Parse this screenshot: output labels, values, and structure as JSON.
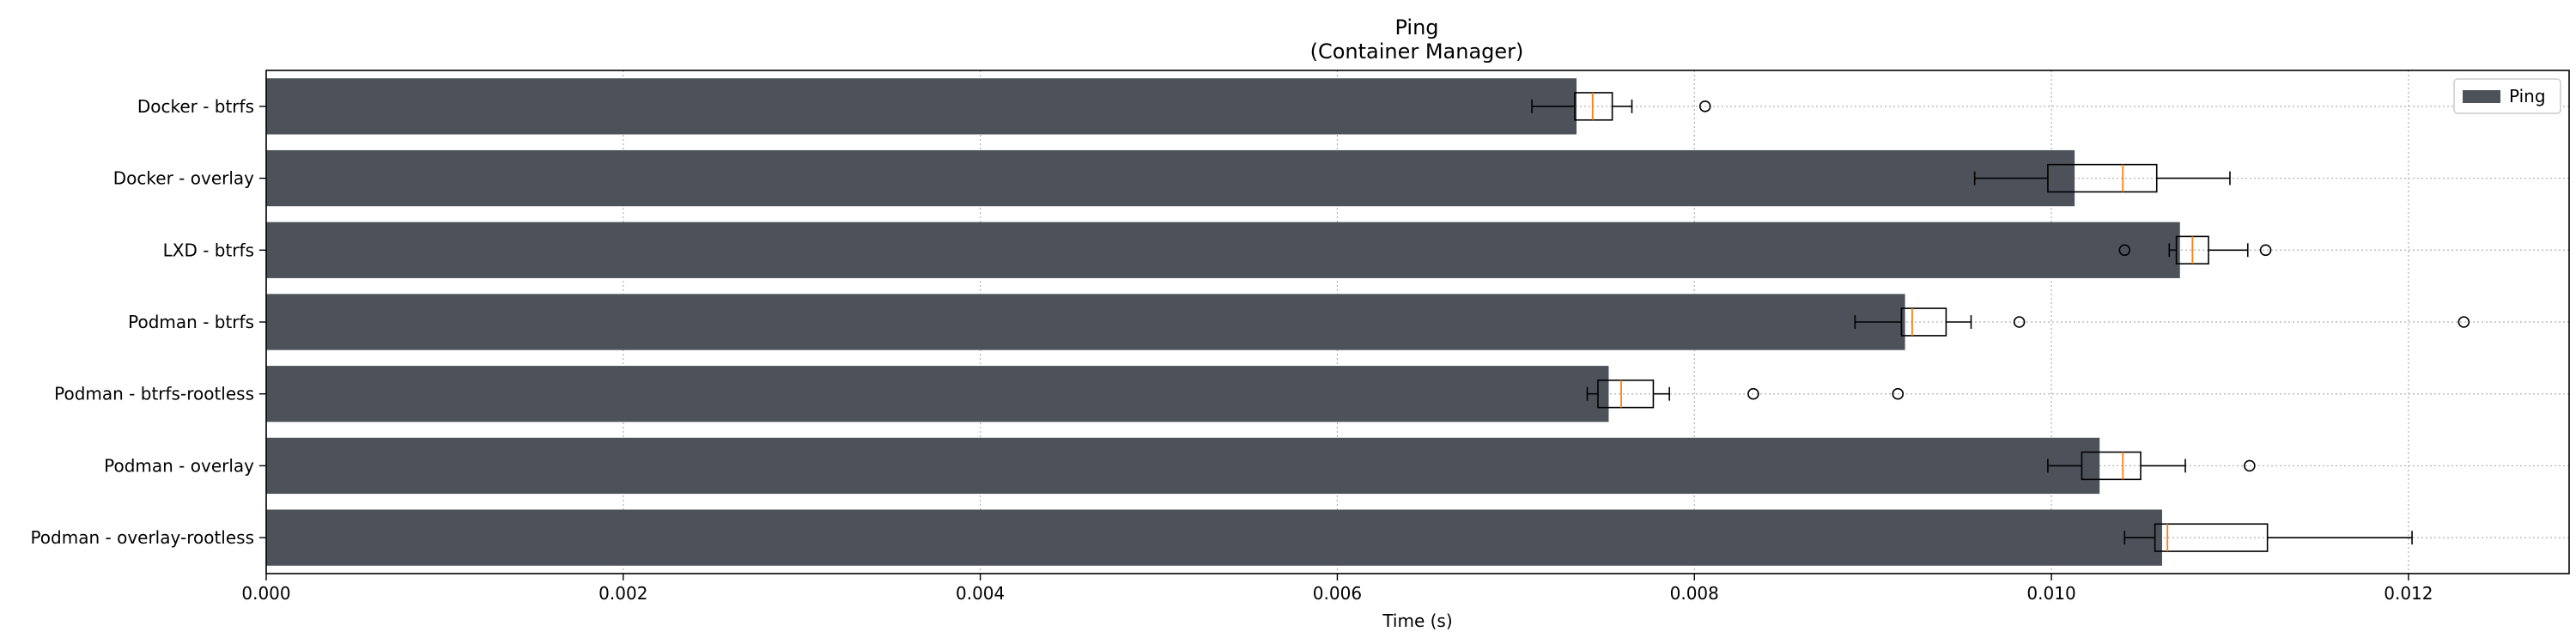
{
  "chart_data": {
    "type": "bar",
    "orientation": "horizontal",
    "title": [
      "Ping",
      "(Container Manager)"
    ],
    "xlabel": "Time (s)",
    "ylabel": "",
    "xlim": [
      0,
      0.0129
    ],
    "xticks": [
      0.0,
      0.002,
      0.004,
      0.006,
      0.008,
      0.01,
      0.012
    ],
    "xtick_labels": [
      "0.000",
      "0.002",
      "0.004",
      "0.006",
      "0.008",
      "0.010",
      "0.012"
    ],
    "grid": true,
    "legend": {
      "placement": "top-right",
      "entries": [
        {
          "name": "Ping",
          "color": "#4d525a"
        }
      ]
    },
    "categories": [
      "Docker - btrfs",
      "Docker - overlay",
      "LXD - btrfs",
      "Podman - btrfs",
      "Podman - btrfs-rootless",
      "Podman - overlay",
      "Podman - overlay-rootless"
    ],
    "series": [
      {
        "name": "Ping",
        "values": [
          0.00734,
          0.01013,
          0.01072,
          0.00918,
          0.00752,
          0.01027,
          0.01062
        ]
      }
    ],
    "boxplots": [
      {
        "whisker_low": 0.00709,
        "q1": 0.00733,
        "median": 0.00743,
        "q3": 0.00754,
        "whisker_high": 0.00765,
        "outliers": [
          0.00806
        ]
      },
      {
        "whisker_low": 0.00957,
        "q1": 0.00998,
        "median": 0.0104,
        "q3": 0.01059,
        "whisker_high": 0.011,
        "outliers": []
      },
      {
        "whisker_low": 0.01066,
        "q1": 0.0107,
        "median": 0.01079,
        "q3": 0.01088,
        "whisker_high": 0.0111,
        "outliers": [
          0.01041,
          0.0112
        ]
      },
      {
        "whisker_low": 0.0089,
        "q1": 0.00916,
        "median": 0.00922,
        "q3": 0.00941,
        "whisker_high": 0.00955,
        "outliers": [
          0.00982,
          0.01231
        ]
      },
      {
        "whisker_low": 0.0074,
        "q1": 0.00746,
        "median": 0.00759,
        "q3": 0.00777,
        "whisker_high": 0.00786,
        "outliers": [
          0.00833,
          0.00914
        ]
      },
      {
        "whisker_low": 0.00998,
        "q1": 0.01017,
        "median": 0.0104,
        "q3": 0.0105,
        "whisker_high": 0.01075,
        "outliers": [
          0.01111
        ]
      },
      {
        "whisker_low": 0.01041,
        "q1": 0.01058,
        "median": 0.01065,
        "q3": 0.01121,
        "whisker_high": 0.01202,
        "outliers": []
      }
    ],
    "colors": {
      "bar": "#4d525a",
      "median": "#ff7f0e",
      "grid": "#b0b0b0",
      "axis": "#000000"
    }
  }
}
